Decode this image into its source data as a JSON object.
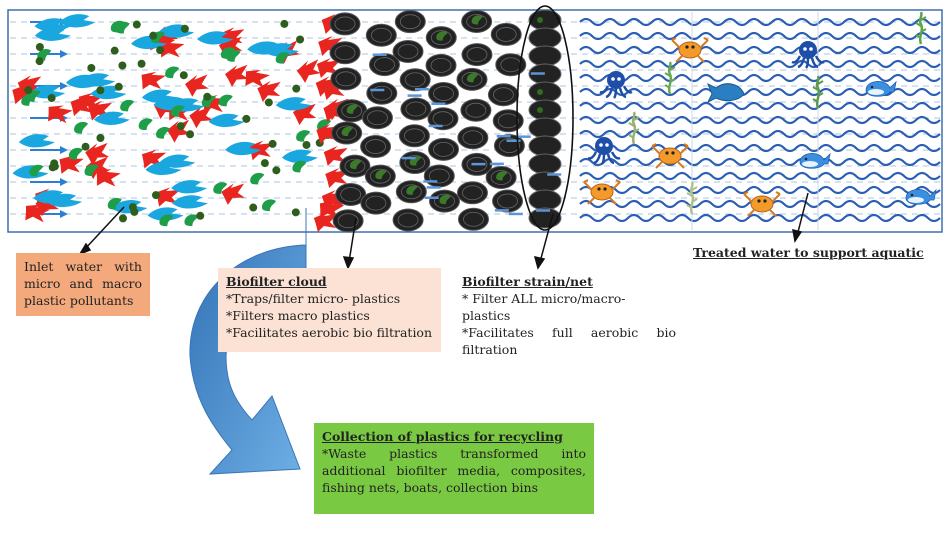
{
  "inlet_box": {
    "text": "Inlet water with micro and macro plastic pollutants",
    "color": "#f4a97d"
  },
  "biofilter_cloud_box": {
    "title": "Biofilter cloud",
    "items": [
      "*Traps/filter micro- plastics",
      "*Filters macro plastics",
      "*Facilitates aerobic bio filtration"
    ],
    "color": "#fbe2d5"
  },
  "biofilter_strain_box": {
    "title": "Biofilter strain/net",
    "items": [
      "* Filter ALL micro/macro- plastics",
      "*Facilitates full aerobic bio",
      "filtration"
    ]
  },
  "treated_water_label": "Treated water to support aquatic",
  "collection_box": {
    "title": "Collection of plastics for recycling",
    "text": "*Waste plastics transformed into additional biofilter media, composites, fishing nets, boats, collection bins",
    "color": "#7ac943"
  },
  "colors": {
    "pollutant_red": "#e8251f",
    "pollutant_blue": "#1aa7e0",
    "pollutant_green": "#1f9e4a",
    "biofilter_media": "#222222",
    "water_wave": "#2b5fb3",
    "recycle_arrow": "#4a8fd1"
  },
  "icons": [
    "crab-icon",
    "octopus-icon",
    "whale-icon",
    "fish-icon",
    "seaweed-icon"
  ]
}
